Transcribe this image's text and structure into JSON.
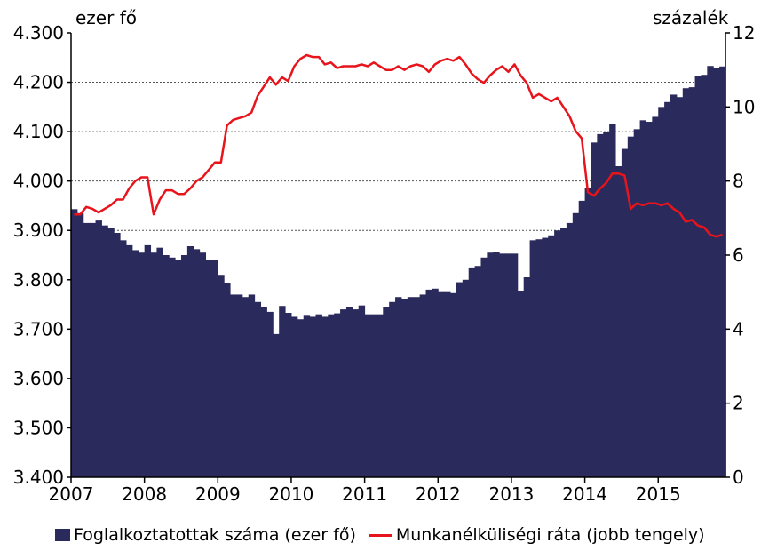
{
  "chart_data": {
    "type": "bar+line",
    "left_axis_unit": "ezer fő",
    "right_axis_unit": "százalék",
    "left_ticks": [
      "4.300",
      "4.200",
      "4.100",
      "4.000",
      "3.900",
      "3.800",
      "3.700",
      "3.600",
      "3.500",
      "3.400"
    ],
    "right_ticks": [
      "12",
      "10",
      "8",
      "6",
      "4",
      "2",
      "0"
    ],
    "x_ticks": [
      "2007",
      "2008",
      "2009",
      "2010",
      "2011",
      "2012",
      "2013",
      "2014",
      "2015"
    ],
    "ylim_left": [
      3400,
      4300
    ],
    "ylim_right": [
      0,
      12
    ],
    "grid": "horizontal dashed at 4.300, 4.200, 4.100, 4.000 and 3.900",
    "legend_position": "bottom",
    "start": "2007-01",
    "frequency": "monthly",
    "series": [
      {
        "name": "Foglalkoztatottak száma (ezer fő)",
        "type": "bar",
        "axis": "left",
        "color": "#2b2a5c",
        "values": [
          3943,
          3935,
          3915,
          3915,
          3920,
          3910,
          3905,
          3895,
          3880,
          3870,
          3860,
          3855,
          3870,
          3855,
          3865,
          3850,
          3845,
          3840,
          3850,
          3868,
          3862,
          3855,
          3840,
          3840,
          3810,
          3793,
          3770,
          3770,
          3765,
          3770,
          3755,
          3745,
          3735,
          3690,
          3747,
          3733,
          3725,
          3720,
          3727,
          3725,
          3730,
          3725,
          3730,
          3732,
          3740,
          3745,
          3740,
          3748,
          3730,
          3730,
          3730,
          3745,
          3755,
          3765,
          3760,
          3765,
          3765,
          3770,
          3780,
          3782,
          3775,
          3775,
          3773,
          3795,
          3800,
          3825,
          3828,
          3845,
          3855,
          3857,
          3853,
          3853,
          3853,
          3778,
          3805,
          3880,
          3882,
          3885,
          3890,
          3900,
          3905,
          3915,
          3935,
          3960,
          3985,
          4078,
          4095,
          4100,
          4115,
          4030,
          4065,
          4090,
          4105,
          4123,
          4120,
          4130,
          4150,
          4160,
          4175,
          4170,
          4188,
          4190,
          4212,
          4215,
          4233,
          4228,
          4232
        ]
      },
      {
        "name": "Munkanélküliségi ráta (jobb tengely)",
        "type": "line",
        "axis": "right",
        "color": "#e8141b",
        "values": [
          7.1,
          7.1,
          7.3,
          7.25,
          7.15,
          7.25,
          7.35,
          7.5,
          7.5,
          7.8,
          8.0,
          8.1,
          8.1,
          7.1,
          7.5,
          7.75,
          7.75,
          7.65,
          7.65,
          7.8,
          8.0,
          8.1,
          8.3,
          8.5,
          8.5,
          9.5,
          9.65,
          9.7,
          9.75,
          9.85,
          10.3,
          10.55,
          10.8,
          10.6,
          10.8,
          10.7,
          11.1,
          11.3,
          11.4,
          11.35,
          11.35,
          11.15,
          11.2,
          11.05,
          11.1,
          11.1,
          11.1,
          11.15,
          11.1,
          11.2,
          11.1,
          11.0,
          11.0,
          11.1,
          11.0,
          11.1,
          11.15,
          11.1,
          10.95,
          11.15,
          11.25,
          11.3,
          11.25,
          11.35,
          11.15,
          10.9,
          10.75,
          10.65,
          10.85,
          11.0,
          11.1,
          10.95,
          11.15,
          10.85,
          10.65,
          10.25,
          10.35,
          10.25,
          10.15,
          10.25,
          10.0,
          9.75,
          9.35,
          9.15,
          7.7,
          7.6,
          7.8,
          7.95,
          8.2,
          8.2,
          8.15,
          7.25,
          7.4,
          7.35,
          7.4,
          7.4,
          7.35,
          7.4,
          7.25,
          7.15,
          6.9,
          6.95,
          6.8,
          6.75,
          6.55,
          6.5,
          6.55
        ]
      }
    ]
  }
}
